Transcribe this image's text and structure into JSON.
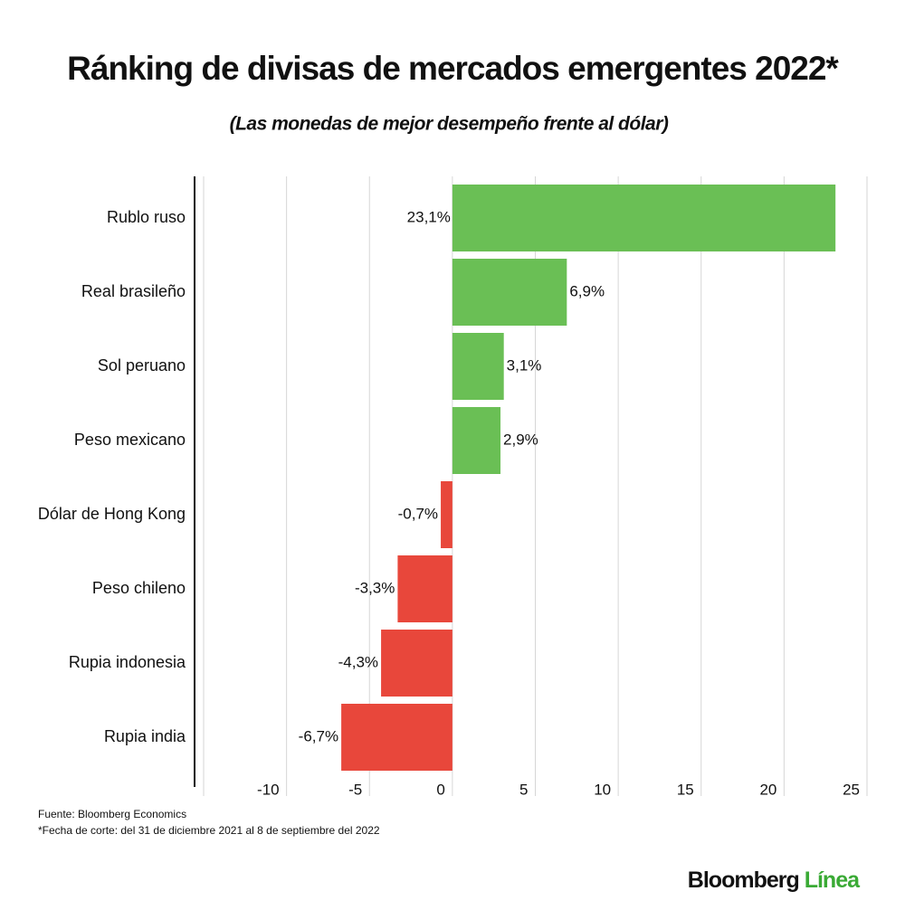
{
  "chart_data": {
    "type": "hbar",
    "title": "Ránking de divisas de mercados emergentes 2022*",
    "subtitle": "(Las monedas de mejor desempeño frente al dólar)",
    "categories": [
      "Rublo ruso",
      "Real brasileño",
      "Sol peruano",
      "Peso mexicano",
      "Dólar de Hong Kong",
      "Peso chileno",
      "Rupia indonesia",
      "Rupia india"
    ],
    "values": [
      23.1,
      6.9,
      3.1,
      2.9,
      -0.7,
      -3.3,
      -4.3,
      -6.7
    ],
    "value_labels": [
      "23,1%",
      "6,9%",
      "3,1%",
      "2,9%",
      "-0,7%",
      "-3,3%",
      "-4,3%",
      "-6,7%"
    ],
    "colors": [
      "#6abf55",
      "#6abf55",
      "#6abf55",
      "#6abf55",
      "#e8473b",
      "#e8473b",
      "#e8473b",
      "#e8473b"
    ],
    "xlim": [
      -15,
      25
    ],
    "xticks": [
      -10,
      -5,
      0,
      5,
      10,
      15,
      20,
      25
    ],
    "grid": true,
    "source": "Fuente: Bloomberg Economics",
    "note": "*Fecha de corte: del 31 de diciembre 2021 al 8 de septiembre del 2022",
    "logo": [
      "Bloomberg",
      "Línea"
    ]
  }
}
